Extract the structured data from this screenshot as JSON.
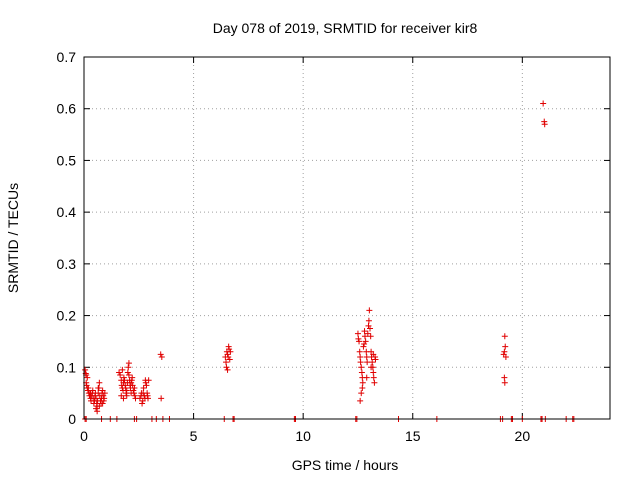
{
  "chart_data": {
    "type": "scatter",
    "title": "Day 078 of 2019, SRMTID for receiver kir8",
    "xlabel": "GPS time / hours",
    "ylabel": "SRMTID / TECUs",
    "xlim": [
      0,
      24
    ],
    "ylim": [
      0,
      0.7
    ],
    "x_ticks": [
      0,
      5,
      10,
      15,
      20
    ],
    "x_tick_labels": [
      "0",
      "5",
      "10",
      "15",
      "20"
    ],
    "y_ticks": [
      0,
      0.1,
      0.2,
      0.3,
      0.4,
      0.5,
      0.6,
      0.7
    ],
    "y_tick_labels": [
      "0",
      "0.1",
      "0.2",
      "0.3",
      "0.4",
      "0.5",
      "0.6",
      "0.7"
    ],
    "grid": true,
    "marker": "+",
    "color": "#e00000",
    "series": [
      {
        "name": "SRMTID",
        "points": [
          [
            0.05,
            0.095
          ],
          [
            0.08,
            0.088
          ],
          [
            0.1,
            0.07
          ],
          [
            0.12,
            0.065
          ],
          [
            0.15,
            0.06
          ],
          [
            0.18,
            0.055
          ],
          [
            0.2,
            0.06
          ],
          [
            0.22,
            0.05
          ],
          [
            0.25,
            0.045
          ],
          [
            0.28,
            0.05
          ],
          [
            0.3,
            0.04
          ],
          [
            0.32,
            0.035
          ],
          [
            0.35,
            0.045
          ],
          [
            0.38,
            0.05
          ],
          [
            0.4,
            0.055
          ],
          [
            0.42,
            0.04
          ],
          [
            0.45,
            0.03
          ],
          [
            0.48,
            0.035
          ],
          [
            0.5,
            0.045
          ],
          [
            0.52,
            0.05
          ],
          [
            0.55,
            0.04
          ],
          [
            0.58,
            0.03
          ],
          [
            0.6,
            0.025
          ],
          [
            0.62,
            0.035
          ],
          [
            0.65,
            0.05
          ],
          [
            0.68,
            0.06
          ],
          [
            0.7,
            0.07
          ],
          [
            0.72,
            0.045
          ],
          [
            0.75,
            0.035
          ],
          [
            0.78,
            0.03
          ],
          [
            0.8,
            0.04
          ],
          [
            0.82,
            0.05
          ],
          [
            0.85,
            0.055
          ],
          [
            0.88,
            0.045
          ],
          [
            0.9,
            0.035
          ],
          [
            0.92,
            0.04
          ],
          [
            0.95,
            0.05
          ],
          [
            0.55,
            0.02
          ],
          [
            0.6,
            0.015
          ],
          [
            0.7,
            0.025
          ],
          [
            0.15,
            0.08
          ],
          [
            0.1,
            0.085
          ],
          [
            0.3,
            0.05
          ],
          [
            0.65,
            0.06
          ],
          [
            0.85,
            0.03
          ],
          [
            1.6,
            0.09
          ],
          [
            1.65,
            0.085
          ],
          [
            1.7,
            0.075
          ],
          [
            1.72,
            0.065
          ],
          [
            1.75,
            0.06
          ],
          [
            1.78,
            0.055
          ],
          [
            1.8,
            0.07
          ],
          [
            1.82,
            0.08
          ],
          [
            1.85,
            0.075
          ],
          [
            1.88,
            0.065
          ],
          [
            1.9,
            0.06
          ],
          [
            1.92,
            0.05
          ],
          [
            1.95,
            0.055
          ],
          [
            1.98,
            0.07
          ],
          [
            2.0,
            0.09
          ],
          [
            2.02,
            0.1
          ],
          [
            2.05,
            0.085
          ],
          [
            2.08,
            0.075
          ],
          [
            2.1,
            0.065
          ],
          [
            2.12,
            0.06
          ],
          [
            2.15,
            0.07
          ],
          [
            2.18,
            0.075
          ],
          [
            2.2,
            0.08
          ],
          [
            2.22,
            0.065
          ],
          [
            2.25,
            0.055
          ],
          [
            2.28,
            0.05
          ],
          [
            2.3,
            0.06
          ],
          [
            2.32,
            0.045
          ],
          [
            2.35,
            0.04
          ],
          [
            1.7,
            0.045
          ],
          [
            1.8,
            0.04
          ],
          [
            1.95,
            0.045
          ],
          [
            2.05,
            0.108
          ],
          [
            1.75,
            0.095
          ],
          [
            2.15,
            0.05
          ],
          [
            2.55,
            0.04
          ],
          [
            2.6,
            0.045
          ],
          [
            2.62,
            0.05
          ],
          [
            2.65,
            0.03
          ],
          [
            2.68,
            0.035
          ],
          [
            2.7,
            0.05
          ],
          [
            2.72,
            0.06
          ],
          [
            2.75,
            0.045
          ],
          [
            2.78,
            0.04
          ],
          [
            2.8,
            0.075
          ],
          [
            2.82,
            0.07
          ],
          [
            2.85,
            0.065
          ],
          [
            2.88,
            0.05
          ],
          [
            2.9,
            0.045
          ],
          [
            2.92,
            0.04
          ],
          [
            2.95,
            0.075
          ],
          [
            3.5,
            0.125
          ],
          [
            3.55,
            0.12
          ],
          [
            3.52,
            0.04
          ],
          [
            6.45,
            0.12
          ],
          [
            6.48,
            0.11
          ],
          [
            6.5,
            0.1
          ],
          [
            6.52,
            0.13
          ],
          [
            6.55,
            0.125
          ],
          [
            6.58,
            0.12
          ],
          [
            6.6,
            0.14
          ],
          [
            6.62,
            0.135
          ],
          [
            6.65,
            0.115
          ],
          [
            6.68,
            0.13
          ],
          [
            6.55,
            0.095
          ],
          [
            12.5,
            0.165
          ],
          [
            12.52,
            0.155
          ],
          [
            12.55,
            0.15
          ],
          [
            12.58,
            0.13
          ],
          [
            12.6,
            0.12
          ],
          [
            12.62,
            0.11
          ],
          [
            12.65,
            0.1
          ],
          [
            12.68,
            0.09
          ],
          [
            12.7,
            0.08
          ],
          [
            12.72,
            0.07
          ],
          [
            12.6,
            0.035
          ],
          [
            12.65,
            0.05
          ],
          [
            12.7,
            0.06
          ],
          [
            12.75,
            0.14
          ],
          [
            12.78,
            0.145
          ],
          [
            12.8,
            0.17
          ],
          [
            12.82,
            0.16
          ],
          [
            12.85,
            0.15
          ],
          [
            12.88,
            0.13
          ],
          [
            12.9,
            0.12
          ],
          [
            12.92,
            0.11
          ],
          [
            12.95,
            0.165
          ],
          [
            12.98,
            0.18
          ],
          [
            13.0,
            0.19
          ],
          [
            13.02,
            0.21
          ],
          [
            13.05,
            0.175
          ],
          [
            13.08,
            0.16
          ],
          [
            13.1,
            0.13
          ],
          [
            13.12,
            0.12
          ],
          [
            13.15,
            0.11
          ],
          [
            13.18,
            0.1
          ],
          [
            13.2,
            0.09
          ],
          [
            13.22,
            0.08
          ],
          [
            13.25,
            0.07
          ],
          [
            13.28,
            0.12
          ],
          [
            13.3,
            0.115
          ],
          [
            13.1,
            0.1
          ],
          [
            13.2,
            0.125
          ],
          [
            12.9,
            0.08
          ],
          [
            19.15,
            0.125
          ],
          [
            19.18,
            0.13
          ],
          [
            19.2,
            0.16
          ],
          [
            19.22,
            0.14
          ],
          [
            19.25,
            0.12
          ],
          [
            19.18,
            0.08
          ],
          [
            19.2,
            0.07
          ],
          [
            20.95,
            0.61
          ],
          [
            21.0,
            0.575
          ],
          [
            21.02,
            0.57
          ],
          [
            0.05,
            0
          ],
          [
            0.1,
            0
          ],
          [
            0.8,
            0
          ],
          [
            1.2,
            0
          ],
          [
            1.5,
            0
          ],
          [
            2.3,
            0
          ],
          [
            2.4,
            0
          ],
          [
            3.1,
            0
          ],
          [
            3.3,
            0
          ],
          [
            3.6,
            0
          ],
          [
            3.9,
            0
          ],
          [
            6.4,
            0
          ],
          [
            6.8,
            0
          ],
          [
            6.85,
            0
          ],
          [
            9.6,
            0
          ],
          [
            9.65,
            0
          ],
          [
            12.4,
            0
          ],
          [
            12.45,
            0
          ],
          [
            14.35,
            0
          ],
          [
            16.1,
            0
          ],
          [
            19.0,
            0
          ],
          [
            19.1,
            0
          ],
          [
            19.5,
            0
          ],
          [
            19.55,
            0
          ],
          [
            20.0,
            0
          ],
          [
            20.85,
            0
          ],
          [
            20.9,
            0
          ],
          [
            21.05,
            0
          ],
          [
            22.0,
            0
          ],
          [
            22.3,
            0
          ],
          [
            22.35,
            0
          ]
        ]
      }
    ]
  }
}
